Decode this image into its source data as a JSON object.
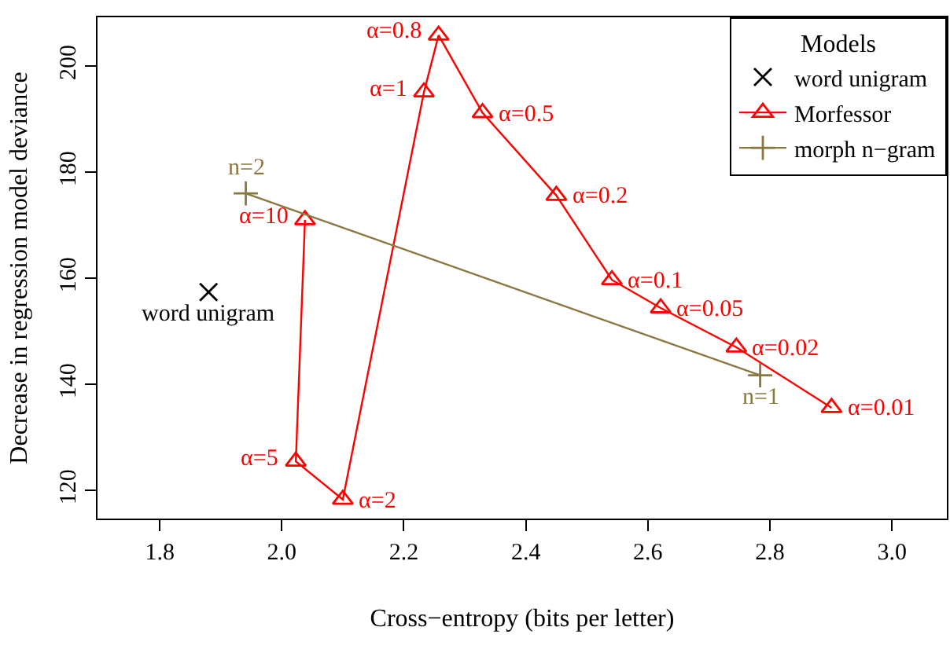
{
  "chart_data": {
    "type": "scatter",
    "xlabel": "Cross−entropy (bits per letter)",
    "ylabel": "Decrease in regression model deviance",
    "legend_title": "Models",
    "legend": "top right",
    "xlim": [
      1.698,
      3.09
    ],
    "xticks": [
      {
        "value": 1.8,
        "label": "1.8"
      },
      {
        "value": 2.0,
        "label": "2.0"
      },
      {
        "value": 2.2,
        "label": "2.2"
      },
      {
        "value": 2.4,
        "label": "2.4"
      },
      {
        "value": 2.6,
        "label": "2.6"
      },
      {
        "value": 2.8,
        "label": "2.8"
      },
      {
        "value": 3.0,
        "label": "3.0"
      }
    ],
    "ylim": [
      114.7,
      209.2
    ],
    "yticks": [
      120,
      140,
      160,
      180,
      200
    ],
    "series": [
      {
        "name": "word unigram",
        "marker": "cross",
        "color": "#000000",
        "x": [
          1.88
        ],
        "values": [
          157.4
        ]
      },
      {
        "name": "Morfessor",
        "type": "line",
        "marker": "triangle",
        "color": "#ff0000",
        "x": [
          2.038,
          2.023,
          2.1,
          2.233,
          2.257,
          2.329,
          2.45,
          2.541,
          2.621,
          2.745,
          2.901
        ],
        "values": [
          171.0,
          125.5,
          118.3,
          195.1,
          205.8,
          191.2,
          175.6,
          159.7,
          154.4,
          147.0,
          135.6
        ]
      },
      {
        "name": "morph n−gram",
        "type": "line",
        "marker": "plus",
        "color": "#8b7742",
        "x": [
          1.941,
          2.784
        ],
        "values": [
          176.0,
          141.7
        ]
      }
    ],
    "annotations": [
      {
        "text": "word unigram",
        "x": 1.88,
        "y": 157.4
      },
      {
        "text": "α=10",
        "x": 2.038,
        "y": 171.0
      },
      {
        "text": "α=5",
        "x": 2.023,
        "y": 125.5
      },
      {
        "text": "α=2",
        "x": 2.1,
        "y": 118.3
      },
      {
        "text": "α=1",
        "x": 2.233,
        "y": 195.1
      },
      {
        "text": "α=0.8",
        "x": 2.257,
        "y": 205.8
      },
      {
        "text": "α=0.5",
        "x": 2.329,
        "y": 191.2
      },
      {
        "text": "α=0.2",
        "x": 2.45,
        "y": 175.6
      },
      {
        "text": "α=0.1",
        "x": 2.541,
        "y": 159.7
      },
      {
        "text": "α=0.05",
        "x": 2.621,
        "y": 154.4
      },
      {
        "text": "α=0.02",
        "x": 2.745,
        "y": 147.0
      },
      {
        "text": "α=0.01",
        "x": 2.901,
        "y": 135.6
      },
      {
        "text": "n=2",
        "x": 1.941,
        "y": 176.0
      },
      {
        "text": "n=1",
        "x": 2.784,
        "y": 141.7
      }
    ]
  }
}
